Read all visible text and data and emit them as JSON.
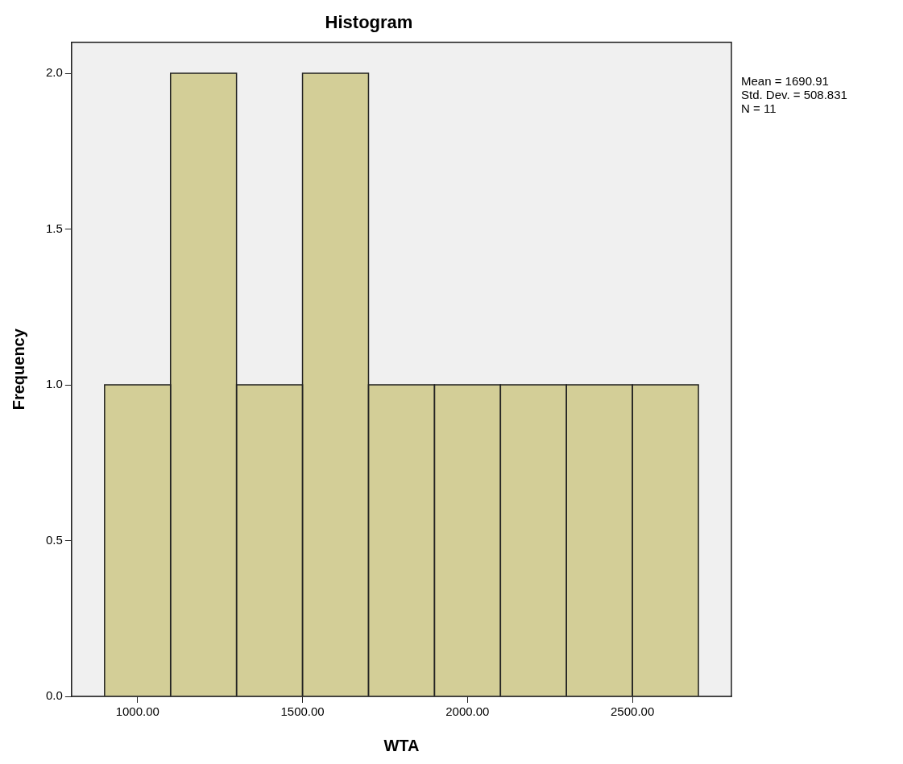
{
  "chart_data": {
    "type": "histogram",
    "title": "Histogram",
    "xlabel": "WTA",
    "ylabel": "Frequency",
    "bins": [
      900,
      1100,
      1300,
      1500,
      1700,
      1900,
      2100,
      2300,
      2500,
      2700
    ],
    "values": [
      1,
      2,
      1,
      2,
      1,
      1,
      1,
      1,
      1
    ],
    "color": "#d3ce97",
    "xlim": [
      800,
      2800
    ],
    "xticks": [
      {
        "value": 1000,
        "label": "1000.00"
      },
      {
        "value": 1500,
        "label": "1500.00"
      },
      {
        "value": 2000,
        "label": "2000.00"
      },
      {
        "value": 2500,
        "label": "2500.00"
      }
    ],
    "ylim": [
      0,
      2.1
    ],
    "yticks": [
      {
        "value": 0,
        "label": "0.0"
      },
      {
        "value": 0.5,
        "label": "0.5"
      },
      {
        "value": 1,
        "label": "1.0"
      },
      {
        "value": 1.5,
        "label": "1.5"
      },
      {
        "value": 2,
        "label": "2.0"
      }
    ],
    "grid": false,
    "legend": false,
    "annotations": [
      "Mean = 1690.91",
      "Std. Dev. = 508.831",
      "N = 11"
    ]
  }
}
